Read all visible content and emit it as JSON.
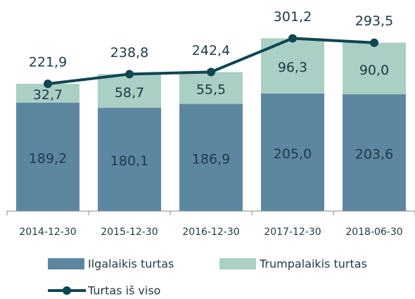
{
  "chart_data": {
    "type": "bar-line",
    "categories": [
      "2014-12-30",
      "2015-12-30",
      "2016-12-30",
      "2017-12-30",
      "2018-06-30"
    ],
    "series": [
      {
        "name": "Ilgalaikis turtas",
        "color": "#5d87a1",
        "kind": "bar",
        "values": [
          189.2,
          180.1,
          186.9,
          205.0,
          203.6
        ],
        "value_labels": [
          "189,2",
          "180,1",
          "186,9",
          "205,0",
          "203,6"
        ]
      },
      {
        "name": "Trumpalaikis turtas",
        "color": "#aacfc4",
        "kind": "bar",
        "values": [
          32.7,
          58.7,
          55.5,
          96.3,
          90.0
        ],
        "value_labels": [
          "32,7",
          "58,7",
          "55,5",
          "96,3",
          "90,0"
        ]
      },
      {
        "name": "Turtas iš viso",
        "color": "#0e4652",
        "kind": "line",
        "values": [
          221.9,
          238.8,
          242.4,
          301.2,
          293.5
        ],
        "value_labels": [
          "221,9",
          "238,8",
          "242,4",
          "301,2",
          "293,5"
        ]
      }
    ],
    "ylim": [
      0,
      368
    ],
    "stacked": true
  }
}
